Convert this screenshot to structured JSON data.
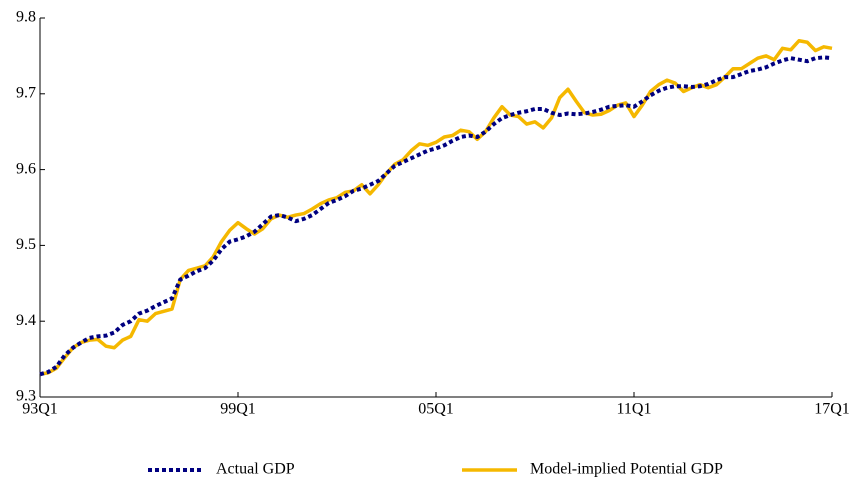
{
  "chart_data": {
    "type": "line",
    "categories": [
      "93Q1",
      null,
      null,
      null,
      null,
      null,
      null,
      null,
      null,
      null,
      null,
      null,
      null,
      null,
      null,
      null,
      null,
      null,
      null,
      null,
      null,
      null,
      null,
      null,
      "99Q1",
      null,
      null,
      null,
      null,
      null,
      null,
      null,
      null,
      null,
      null,
      null,
      null,
      null,
      null,
      null,
      null,
      null,
      null,
      null,
      null,
      null,
      null,
      null,
      "05Q1",
      null,
      null,
      null,
      null,
      null,
      null,
      null,
      null,
      null,
      null,
      null,
      null,
      null,
      null,
      null,
      null,
      null,
      null,
      null,
      null,
      null,
      null,
      null,
      "11Q1",
      null,
      null,
      null,
      null,
      null,
      null,
      null,
      null,
      null,
      null,
      null,
      null,
      null,
      null,
      null,
      null,
      null,
      null,
      null,
      null,
      null,
      null,
      null,
      "17Q1"
    ],
    "series": [
      {
        "name": "Actual GDP",
        "color": "#000080",
        "values": [
          9.33,
          9.333,
          9.34,
          9.355,
          9.365,
          9.372,
          9.378,
          9.38,
          9.381,
          9.385,
          9.395,
          9.4,
          9.41,
          9.414,
          9.42,
          9.425,
          9.43,
          9.455,
          9.46,
          9.466,
          9.47,
          9.48,
          9.495,
          9.505,
          9.508,
          9.512,
          9.518,
          9.528,
          9.538,
          9.54,
          9.537,
          9.532,
          9.535,
          9.54,
          9.548,
          9.556,
          9.56,
          9.565,
          9.572,
          9.575,
          9.58,
          9.585,
          9.595,
          9.605,
          9.61,
          9.615,
          9.62,
          9.625,
          9.628,
          9.632,
          9.638,
          9.643,
          9.645,
          9.643,
          9.65,
          9.66,
          9.668,
          9.672,
          9.675,
          9.677,
          9.68,
          9.68,
          9.675,
          9.672,
          9.674,
          9.673,
          9.674,
          9.676,
          9.679,
          9.683,
          9.684,
          9.685,
          9.683,
          9.69,
          9.698,
          9.704,
          9.708,
          9.71,
          9.71,
          9.709,
          9.71,
          9.713,
          9.718,
          9.722,
          9.722,
          9.726,
          9.73,
          9.732,
          9.735,
          9.74,
          9.744,
          9.747,
          9.745,
          9.743,
          9.747,
          9.748,
          9.747
        ]
      },
      {
        "name": "Model-implied Potential GDP",
        "color": "#f5b800",
        "values": [
          9.33,
          9.332,
          9.338,
          9.352,
          9.365,
          9.372,
          9.375,
          9.376,
          9.367,
          9.365,
          9.375,
          9.38,
          9.402,
          9.4,
          9.41,
          9.413,
          9.416,
          9.455,
          9.467,
          9.47,
          9.473,
          9.485,
          9.505,
          9.52,
          9.53,
          9.522,
          9.515,
          9.522,
          9.535,
          9.54,
          9.537,
          9.54,
          9.542,
          9.548,
          9.555,
          9.56,
          9.563,
          9.57,
          9.572,
          9.58,
          9.568,
          9.58,
          9.595,
          9.607,
          9.613,
          9.625,
          9.634,
          9.632,
          9.636,
          9.643,
          9.645,
          9.652,
          9.65,
          9.64,
          9.65,
          9.668,
          9.683,
          9.672,
          9.67,
          9.66,
          9.663,
          9.655,
          9.668,
          9.695,
          9.706,
          9.69,
          9.675,
          9.672,
          9.673,
          9.678,
          9.685,
          9.688,
          9.67,
          9.685,
          9.703,
          9.712,
          9.718,
          9.714,
          9.703,
          9.708,
          9.712,
          9.708,
          9.712,
          9.722,
          9.733,
          9.733,
          9.74,
          9.747,
          9.75,
          9.745,
          9.76,
          9.758,
          9.77,
          9.768,
          9.757,
          9.762,
          9.76
        ]
      }
    ],
    "ylim": [
      9.3,
      9.8
    ],
    "yticks": [
      9.3,
      9.4,
      9.5,
      9.6,
      9.7,
      9.8
    ]
  }
}
